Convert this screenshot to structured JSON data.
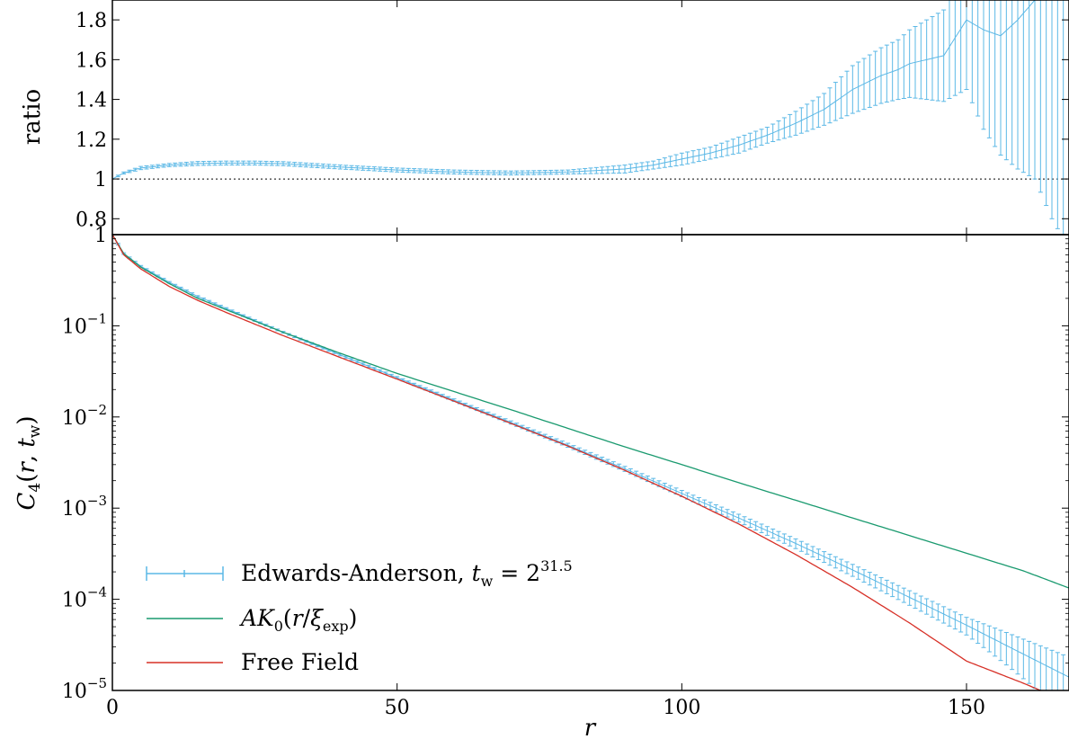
{
  "chart_data": [
    {
      "panel": "top",
      "type": "line",
      "ylabel": "ratio",
      "xlim": [
        0,
        168
      ],
      "ylim": [
        0.72,
        1.9
      ],
      "yticks": [
        0.8,
        1,
        1.2,
        1.4,
        1.6,
        1.8
      ],
      "ytick_labels": [
        "0.8",
        "1",
        "1.2",
        "1.4",
        "1.6",
        "1.8"
      ],
      "reference_line": {
        "y": 1,
        "style": "dotted"
      },
      "series": [
        {
          "color": "#5bb8e6",
          "error_bars": true,
          "x": [
            0,
            2,
            5,
            10,
            15,
            20,
            25,
            30,
            40,
            50,
            60,
            70,
            80,
            90,
            95,
            100,
            105,
            110,
            115,
            120,
            125,
            130,
            135,
            138,
            140,
            143,
            146,
            150,
            153,
            156,
            159,
            162,
            165,
            167
          ],
          "y": [
            1.0,
            1.03,
            1.055,
            1.07,
            1.078,
            1.08,
            1.08,
            1.077,
            1.06,
            1.045,
            1.035,
            1.03,
            1.035,
            1.05,
            1.07,
            1.1,
            1.13,
            1.17,
            1.22,
            1.28,
            1.35,
            1.45,
            1.52,
            1.55,
            1.58,
            1.6,
            1.62,
            1.8,
            1.75,
            1.72,
            1.8,
            1.9,
            1.9,
            1.9
          ],
          "err": [
            0.003,
            0.005,
            0.008,
            0.008,
            0.01,
            0.01,
            0.01,
            0.01,
            0.01,
            0.01,
            0.01,
            0.01,
            0.01,
            0.02,
            0.02,
            0.03,
            0.03,
            0.04,
            0.04,
            0.06,
            0.08,
            0.12,
            0.14,
            0.15,
            0.17,
            0.2,
            0.23,
            0.35,
            0.5,
            0.6,
            0.75,
            0.9,
            1.1,
            1.2
          ]
        }
      ]
    },
    {
      "panel": "bottom",
      "type": "line",
      "xlabel": "r",
      "ylabel": "C4(r, tw)",
      "yscale": "log",
      "xlim": [
        0,
        168
      ],
      "ylim": [
        1e-05,
        1
      ],
      "xticks": [
        0,
        50,
        100,
        150
      ],
      "xtick_labels": [
        "0",
        "50",
        "100",
        "150"
      ],
      "ytick_exponents": [
        -5,
        -4,
        -3,
        -2,
        -1
      ],
      "ytick_top_label": "1",
      "legend_position": "lower-left",
      "series": [
        {
          "name": "Edwards-Anderson, t_w = 2^31.5",
          "color": "#5bb8e6",
          "error_bars": true,
          "x": [
            0,
            2,
            5,
            10,
            15,
            20,
            30,
            40,
            50,
            60,
            70,
            80,
            90,
            100,
            110,
            120,
            130,
            140,
            150,
            160,
            168
          ],
          "y": [
            1,
            0.62,
            0.45,
            0.3,
            0.21,
            0.155,
            0.085,
            0.048,
            0.027,
            0.0153,
            0.0087,
            0.0049,
            0.0027,
            0.00145,
            0.00078,
            0.00041,
            0.00021,
            0.000105,
            5.2e-05,
            2.5e-05,
            1.4e-05
          ]
        },
        {
          "name": "AK0(r/ξexp)",
          "color": "#1a9a6f",
          "x": [
            0,
            2,
            5,
            10,
            15,
            20,
            30,
            40,
            50,
            60,
            70,
            80,
            90,
            100,
            110,
            120,
            130,
            140,
            150,
            160,
            168
          ],
          "y": [
            1,
            0.62,
            0.44,
            0.29,
            0.2,
            0.15,
            0.085,
            0.05,
            0.03,
            0.019,
            0.012,
            0.0075,
            0.0047,
            0.003,
            0.0019,
            0.00122,
            0.00078,
            0.0005,
            0.00032,
            0.000205,
            0.000133
          ]
        },
        {
          "name": "Free Field",
          "color": "#d73027",
          "x": [
            0,
            2,
            5,
            10,
            15,
            20,
            30,
            40,
            50,
            60,
            70,
            80,
            90,
            100,
            110,
            120,
            130,
            140,
            150,
            160,
            163
          ],
          "y": [
            1,
            0.6,
            0.42,
            0.27,
            0.19,
            0.14,
            0.078,
            0.045,
            0.026,
            0.0149,
            0.0085,
            0.0048,
            0.0026,
            0.00135,
            0.00067,
            0.00031,
            0.000135,
            5.5e-05,
            2.1e-05,
            1.2e-05,
            1e-05
          ]
        }
      ]
    }
  ]
}
